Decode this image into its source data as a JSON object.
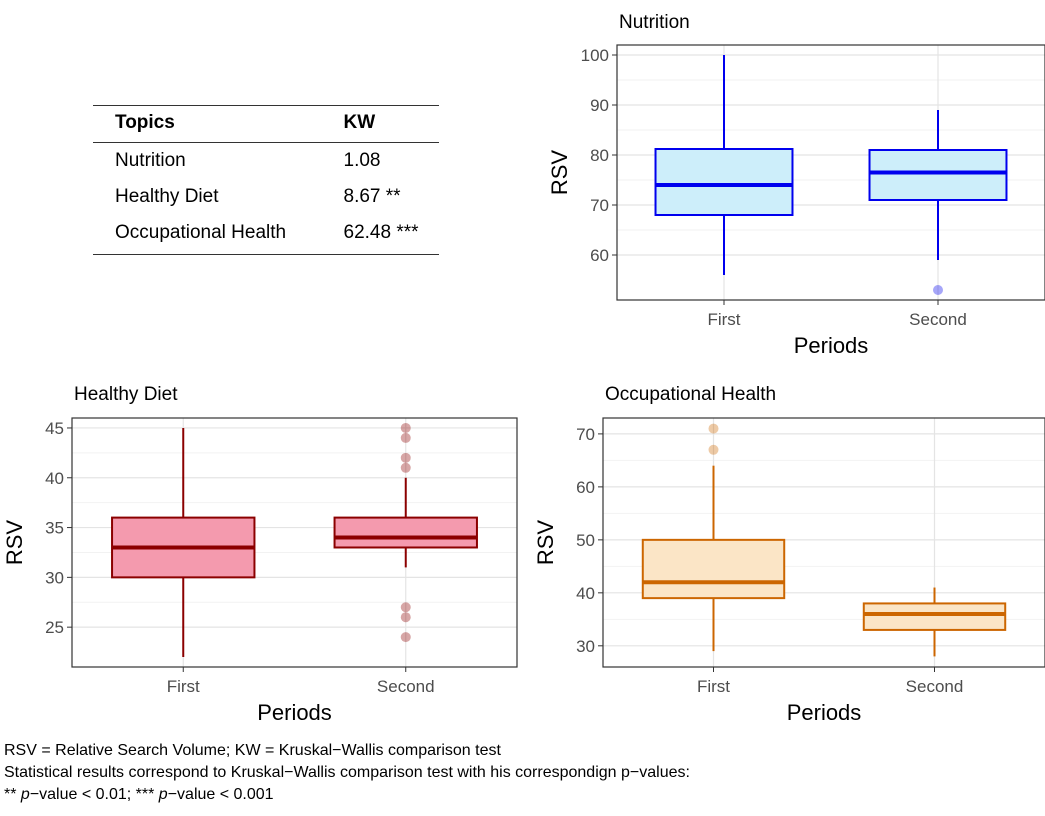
{
  "table": {
    "headers": [
      "Topics",
      "KW"
    ],
    "rows": [
      {
        "topic": "Nutrition",
        "kw": "1.08"
      },
      {
        "topic": "Healthy Diet",
        "kw": "8.67 **"
      },
      {
        "topic": "Occupational Health",
        "kw": "62.48 ***"
      }
    ]
  },
  "chart_data": [
    {
      "type": "boxplot",
      "title": "Nutrition",
      "xlabel": "Periods",
      "ylabel": "RSV",
      "categories": [
        "First",
        "Second"
      ],
      "ylim": [
        51,
        102
      ],
      "yticks": [
        60,
        70,
        80,
        90,
        100
      ],
      "color": "#0000ee",
      "fill": "#cdeefa",
      "boxes": [
        {
          "category": "First",
          "whisker_low": 56,
          "q1": 68,
          "median": 74,
          "q3": 81.2,
          "whisker_high": 100,
          "outliers": []
        },
        {
          "category": "Second",
          "whisker_low": 59,
          "q1": 71,
          "median": 76.5,
          "q3": 81,
          "whisker_high": 89,
          "outliers": [
            53
          ]
        }
      ]
    },
    {
      "type": "boxplot",
      "title": "Healthy Diet",
      "xlabel": "Periods",
      "ylabel": "RSV",
      "categories": [
        "First",
        "Second"
      ],
      "ylim": [
        21,
        46
      ],
      "yticks": [
        25,
        30,
        35,
        40,
        45
      ],
      "color": "#8b0000",
      "fill": "#f49aae",
      "boxes": [
        {
          "category": "First",
          "whisker_low": 22,
          "q1": 30,
          "median": 33,
          "q3": 36,
          "whisker_high": 45,
          "outliers": []
        },
        {
          "category": "Second",
          "whisker_low": 31,
          "q1": 33,
          "median": 34,
          "q3": 36,
          "whisker_high": 40,
          "outliers": [
            45,
            44,
            42,
            41,
            27,
            26,
            24
          ]
        }
      ]
    },
    {
      "type": "boxplot",
      "title": "Occupational Health",
      "xlabel": "Periods",
      "ylabel": "RSV",
      "categories": [
        "First",
        "Second"
      ],
      "ylim": [
        26,
        73
      ],
      "yticks": [
        30,
        40,
        50,
        60,
        70
      ],
      "color": "#cc6600",
      "fill": "#fbe5c6",
      "boxes": [
        {
          "category": "First",
          "whisker_low": 29,
          "q1": 39,
          "median": 42,
          "q3": 50,
          "whisker_high": 64,
          "outliers": [
            71,
            67
          ]
        },
        {
          "category": "Second",
          "whisker_low": 28,
          "q1": 33,
          "median": 36,
          "q3": 38,
          "whisker_high": 41,
          "outliers": []
        }
      ]
    }
  ],
  "footnotes": {
    "line1": "RSV = Relative Search Volume; KW = Kruskal−Wallis comparison test",
    "line2": "Statistical results correspond to Kruskal−Wallis comparison test with his correspondign p−values:",
    "line3_a": "** ",
    "line3_b": "p",
    "line3_c": "−value < 0.01; *** ",
    "line3_d": "p",
    "line3_e": "−value < 0.001"
  }
}
